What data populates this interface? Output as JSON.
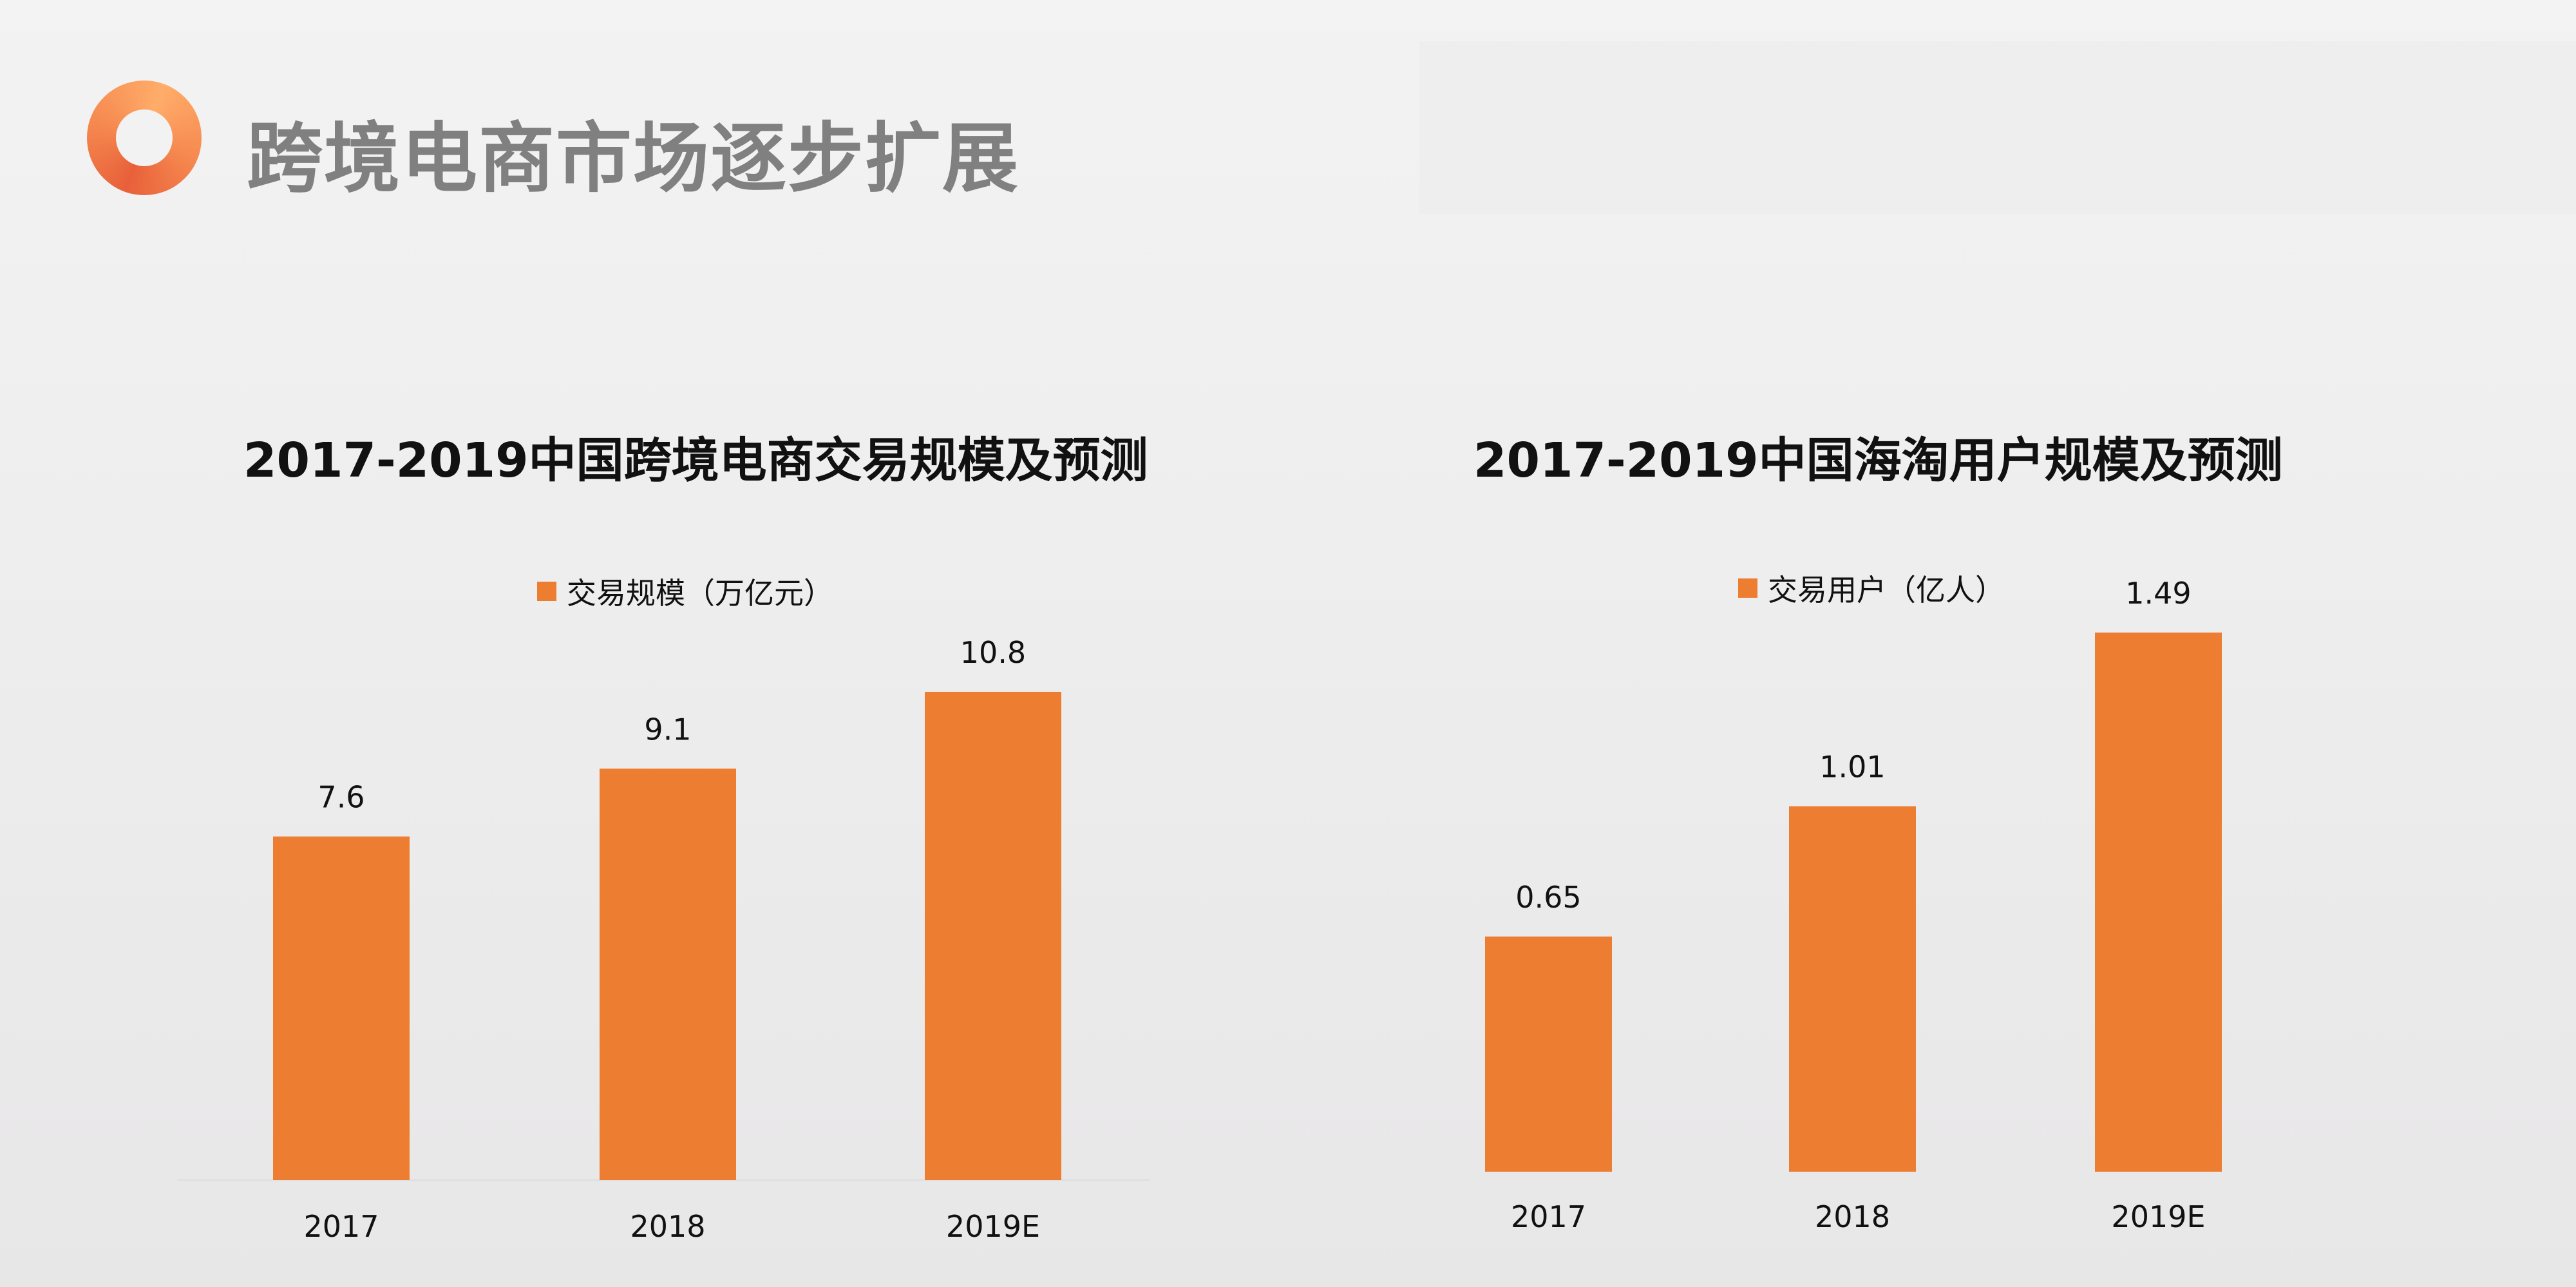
{
  "page": {
    "title": "跨境电商市场逐步扩展"
  },
  "colors": {
    "bar": "#ed7d31",
    "title": "#808080"
  },
  "chart_data": [
    {
      "type": "bar",
      "title": "2017-2019中国跨境电商交易规模及预测",
      "legend": "交易规模（万亿元）",
      "legend_position": "top",
      "categories": [
        "2017",
        "2018",
        "2019E"
      ],
      "values": [
        7.6,
        9.1,
        10.8
      ],
      "value_labels": [
        "7.6",
        "9.1",
        "10.8"
      ],
      "ylim": [
        0,
        10.8
      ],
      "grid": false
    },
    {
      "type": "bar",
      "title": "2017-2019中国海淘用户规模及预测",
      "legend": "交易用户（亿人）",
      "legend_position": "top",
      "categories": [
        "2017",
        "2018",
        "2019E"
      ],
      "values": [
        0.65,
        1.01,
        1.49
      ],
      "value_labels": [
        "0.65",
        "1.01",
        "1.49"
      ],
      "ylim": [
        0,
        1.49
      ],
      "grid": false
    }
  ]
}
